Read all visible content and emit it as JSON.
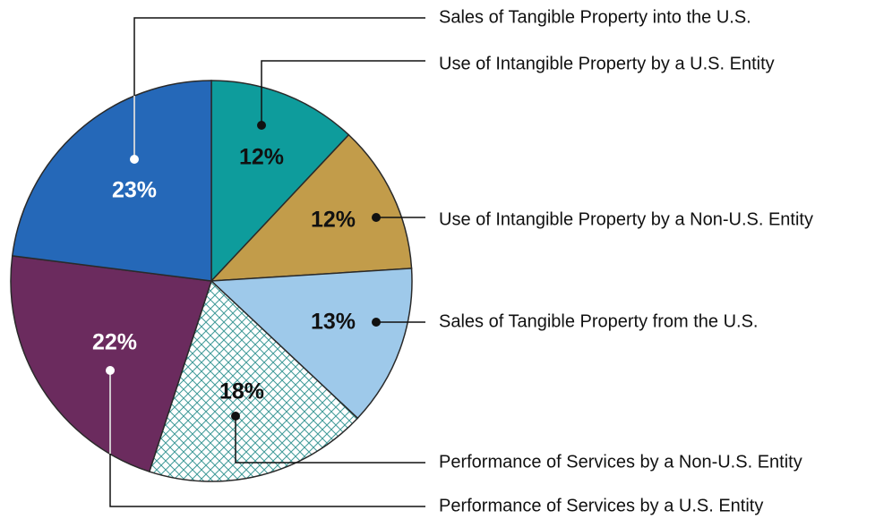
{
  "chart_data": {
    "type": "pie",
    "categories": [
      "Use of Intangible Property by a U.S. Entity",
      "Use of Intangible Property by a Non-U.S. Entity",
      "Sales of Tangible Property from the U.S.",
      "Performance of Services by a Non-U.S. Entity",
      "Performance of Services by a U.S. Entity",
      "Sales of Tangible Property into the U.S."
    ],
    "values": [
      12,
      12,
      13,
      18,
      22,
      23
    ],
    "value_labels": [
      "12%",
      "12%",
      "13%",
      "18%",
      "22%",
      "23%"
    ],
    "colors": [
      "#0e9c9c",
      "#c29c4a",
      "#9ec9ea",
      "#ffffff",
      "#6b2b5e",
      "#2568b8"
    ],
    "hatched": [
      false,
      false,
      false,
      true,
      false,
      false
    ],
    "hatch_color": "#3f9a98"
  }
}
